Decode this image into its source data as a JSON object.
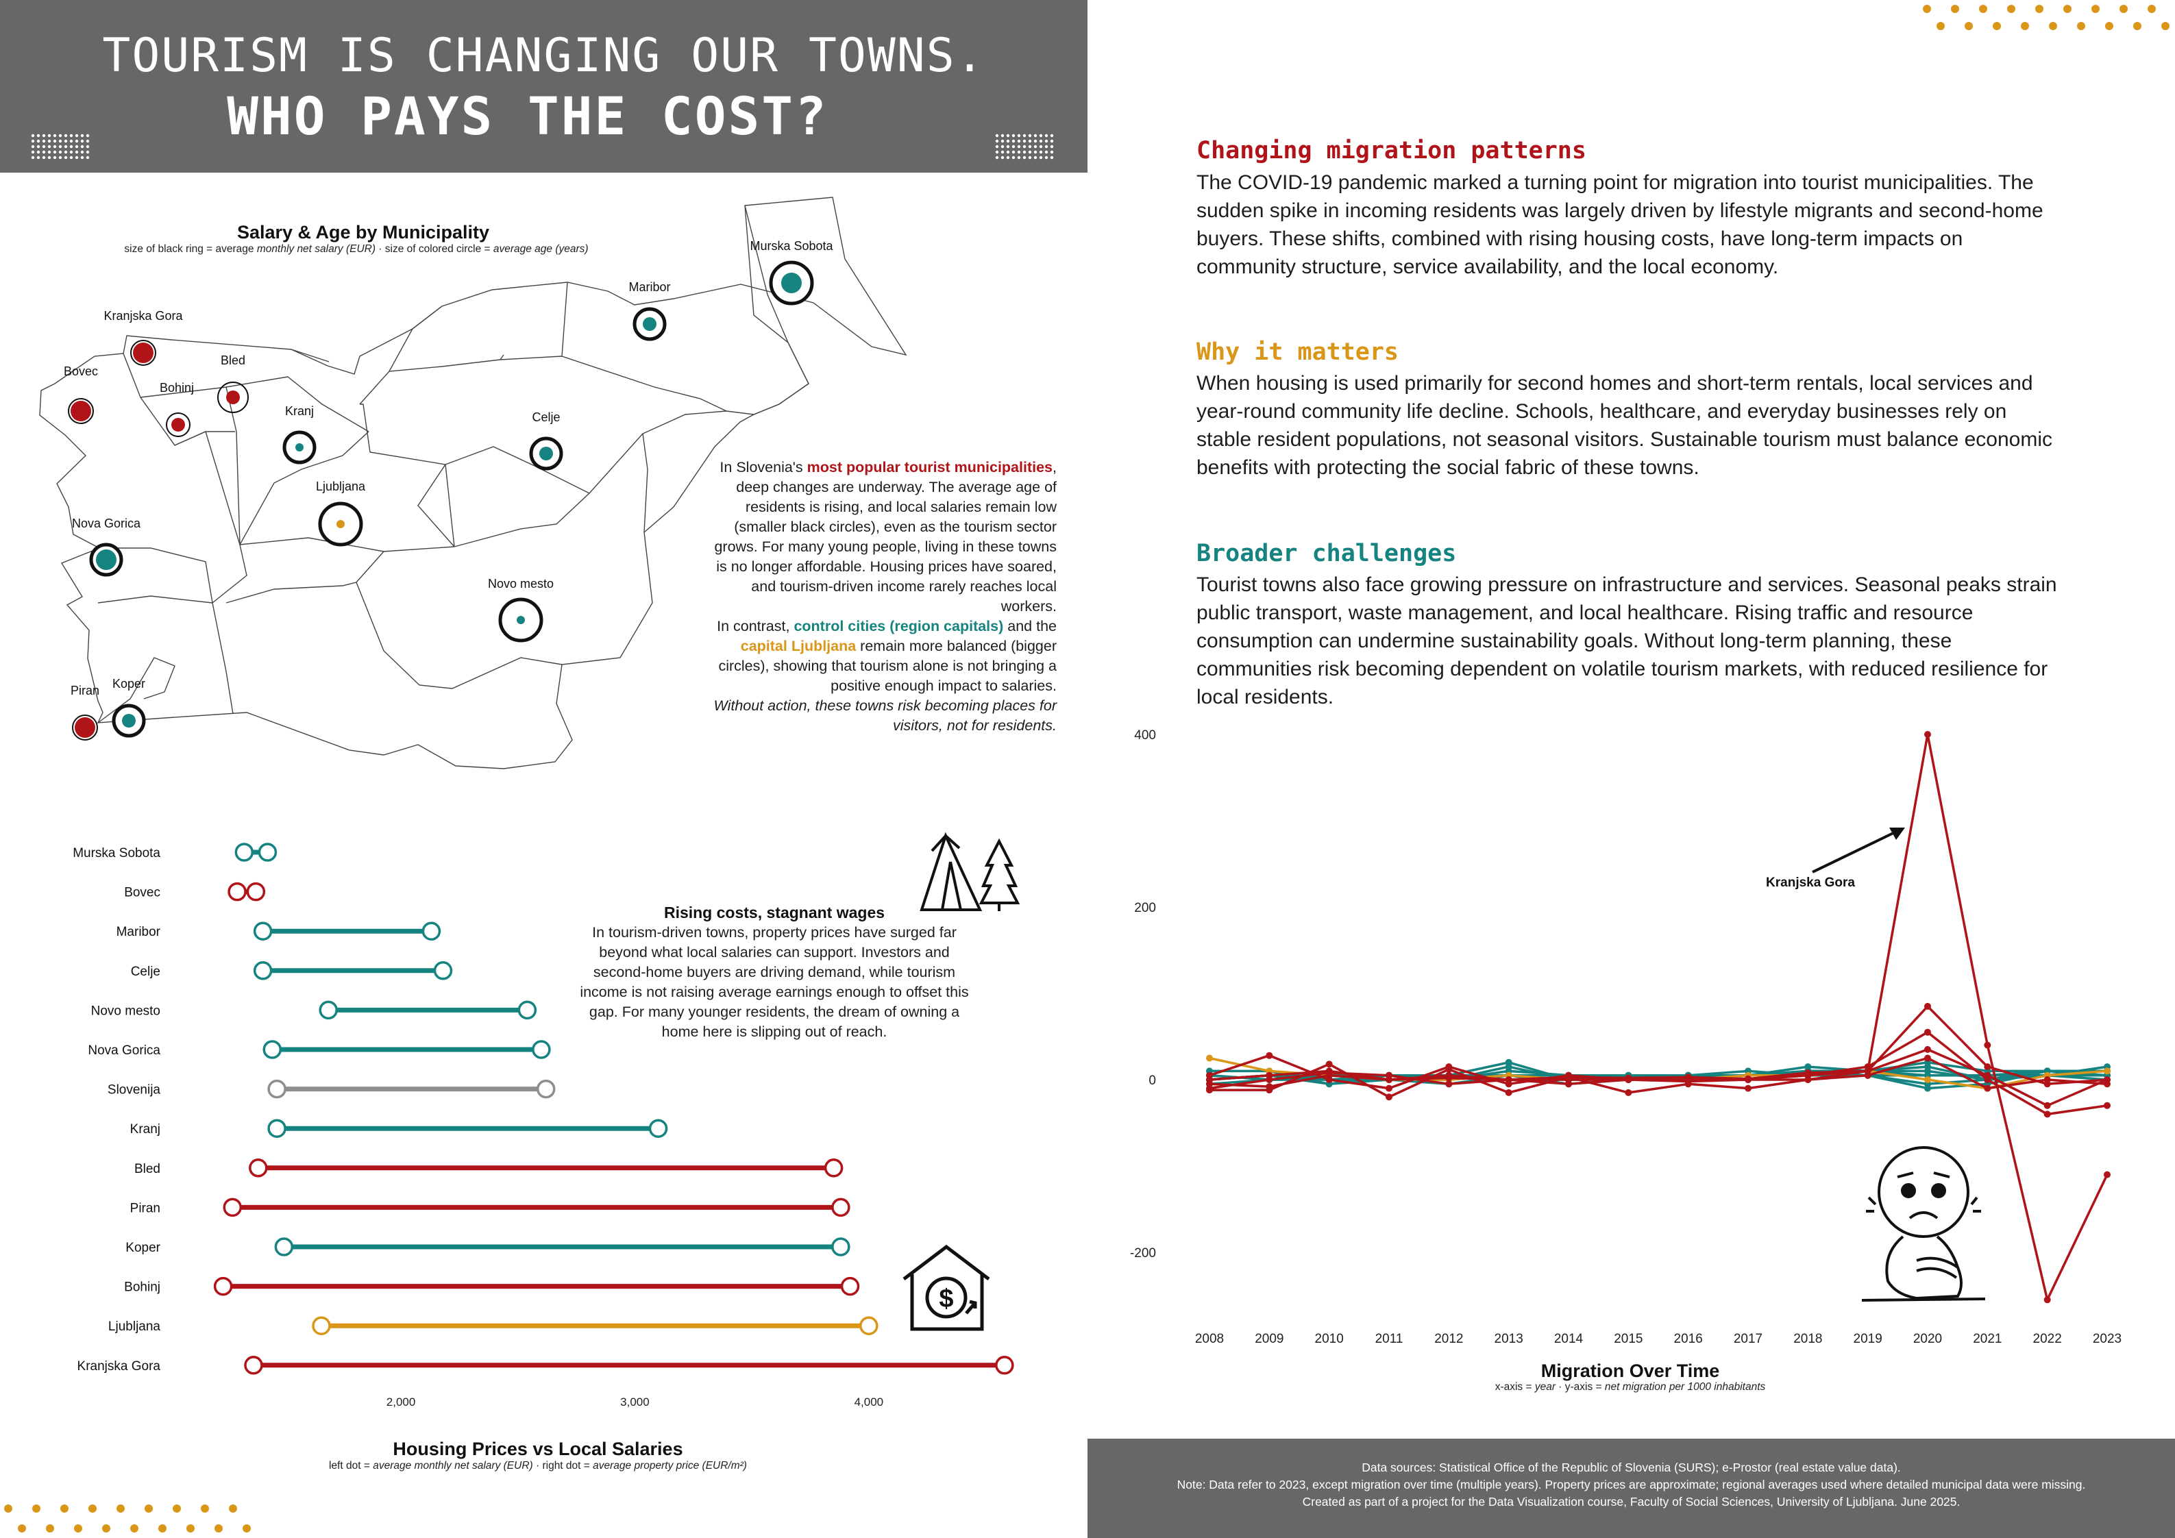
{
  "header": {
    "title_line1": "TOURISM IS CHANGING OUR TOWNS.",
    "title_line2": "WHO PAYS THE COST?"
  },
  "colors": {
    "header_bg": "#666769",
    "tourist_red": "#b01318",
    "control_teal": "#15837f",
    "capital_gold": "#d99619",
    "national_grey": "#8e8e8e",
    "dots_orange": "#d99619"
  },
  "sections": [
    {
      "title": "Changing migration patterns",
      "color": "#b01318",
      "body": "The COVID-19 pandemic marked a turning point for migration into tourist municipalities. The sudden spike in incoming residents was largely driven by lifestyle migrants and second-home buyers. These shifts, combined with rising housing costs, have long-term impacts on community structure, service availability, and the local economy."
    },
    {
      "title": "Why it matters",
      "color": "#d99619",
      "body": "When housing is used primarily for second homes and short-term rentals, local services and year-round community life decline. Schools, healthcare, and everyday businesses rely on stable resident populations, not seasonal visitors. Sustainable tourism must balance economic benefits with protecting the social fabric of these towns."
    },
    {
      "title": "Broader challenges",
      "color": "#15837f",
      "body": "Tourist towns also face growing pressure on infrastructure and services. Seasonal peaks strain public transport, waste management, and local healthcare. Rising traffic and resource consumption can undermine sustainability goals. Without long-term planning, these communities risk becoming dependent on volatile tourism markets, with reduced resilience for local residents."
    }
  ],
  "map_annotation": {
    "p1": "In Slovenia's ",
    "p1_red": "most popular tourist municipalities",
    "p2": ", deep changes are underway. The average age of residents is rising, and local salaries remain low (smaller black circles), even as the tourism sector grows. For many young people, living in these towns is no longer affordable. Housing prices have soared, and tourism-driven income rarely reaches local workers.",
    "p3": "In contrast, ",
    "p3_teal": "control cities (region capitals)",
    "p4": " and the ",
    "p4_gold": "capital Ljubljana",
    "p5": " remain more balanced (bigger circles), showing that tourism alone is not bringing a positive enough impact to salaries.",
    "p6": "Without action, these towns risk becoming places for visitors, not for residents."
  },
  "dumbbell_annotation": {
    "title": "Rising costs, stagnant wages",
    "body": "In tourism-driven towns, property prices have surged far beyond what local salaries can support. Investors and second-home buyers are driving demand, while tourism income is not raising average earnings enough to offset this gap. For many younger residents, the dream of owning a home here is slipping out of reach."
  },
  "footer": {
    "line1": "Data sources: Statistical Office of the Republic of Slovenia (SURS); e-Prostor (real estate value data).",
    "line2": "Note: Data refer to 2023, except migration over time (multiple years). Property prices are approximate; regional averages used where detailed municipal data were missing.",
    "line3": "Created as part of a project for the Data Visualization course, Faculty of Social Sciences, University of Ljubljana. June 2025."
  },
  "chart_data": [
    {
      "type": "map",
      "title": "Salary & Age by Municipality",
      "subtitle_parts": [
        "size of black ring = average ",
        "monthly net salary (EUR)",
        " · size of colored circle = ",
        "average age (years)"
      ],
      "points": [
        {
          "name": "Murska Sobota",
          "group": "control",
          "ring": "large",
          "dot": "large"
        },
        {
          "name": "Maribor",
          "group": "control",
          "ring": "medium",
          "dot": "medium"
        },
        {
          "name": "Kranjska Gora",
          "group": "tourist",
          "ring": "small",
          "dot": "large"
        },
        {
          "name": "Bled",
          "group": "tourist",
          "ring": "medium",
          "dot": "medium"
        },
        {
          "name": "Bovec",
          "group": "tourist",
          "ring": "small",
          "dot": "large"
        },
        {
          "name": "Bohinj",
          "group": "tourist",
          "ring": "small",
          "dot": "medium"
        },
        {
          "name": "Kranj",
          "group": "control",
          "ring": "medium",
          "dot": "small"
        },
        {
          "name": "Celje",
          "group": "control",
          "ring": "medium",
          "dot": "medium"
        },
        {
          "name": "Ljubljana",
          "group": "capital",
          "ring": "large",
          "dot": "small"
        },
        {
          "name": "Nova Gorica",
          "group": "control",
          "ring": "medium",
          "dot": "large"
        },
        {
          "name": "Novo mesto",
          "group": "control",
          "ring": "large",
          "dot": "small"
        },
        {
          "name": "Piran",
          "group": "tourist",
          "ring": "small",
          "dot": "large"
        },
        {
          "name": "Koper",
          "group": "control",
          "ring": "medium",
          "dot": "medium"
        }
      ]
    },
    {
      "type": "dumbbell",
      "title": "Housing Prices vs Local Salaries",
      "subtitle_parts": [
        "left dot = ",
        "average monthly net salary (EUR)",
        " · right dot = ",
        "average property price (EUR/m²)"
      ],
      "xlim": [
        960,
        4680
      ],
      "xticks": [
        "2,000",
        "3,000",
        "4,000"
      ],
      "xtick_values": [
        2000,
        3000,
        4000
      ],
      "rows": [
        {
          "name": "Murska Sobota",
          "group": "control",
          "salary": 1330,
          "price": 1430
        },
        {
          "name": "Bovec",
          "group": "tourist",
          "salary": 1300,
          "price": 1380
        },
        {
          "name": "Maribor",
          "group": "control",
          "salary": 1410,
          "price": 2130
        },
        {
          "name": "Celje",
          "group": "control",
          "salary": 1410,
          "price": 2180
        },
        {
          "name": "Novo mesto",
          "group": "control",
          "salary": 1690,
          "price": 2540
        },
        {
          "name": "Nova Gorica",
          "group": "control",
          "salary": 1450,
          "price": 2600
        },
        {
          "name": "Slovenija",
          "group": "national",
          "salary": 1470,
          "price": 2620
        },
        {
          "name": "Kranj",
          "group": "control",
          "salary": 1470,
          "price": 3100
        },
        {
          "name": "Bled",
          "group": "tourist",
          "salary": 1390,
          "price": 3850
        },
        {
          "name": "Piran",
          "group": "tourist",
          "salary": 1280,
          "price": 3880
        },
        {
          "name": "Koper",
          "group": "control",
          "salary": 1500,
          "price": 3880
        },
        {
          "name": "Bohinj",
          "group": "tourist",
          "salary": 1240,
          "price": 3920
        },
        {
          "name": "Ljubljana",
          "group": "capital",
          "salary": 1660,
          "price": 4000
        },
        {
          "name": "Kranjska Gora",
          "group": "tourist",
          "salary": 1370,
          "price": 4580
        }
      ]
    },
    {
      "type": "line",
      "title": "Migration Over Time",
      "subtitle_parts": [
        "x-axis = ",
        "year",
        " · y-axis = ",
        "net migration per 1000 inhabitants"
      ],
      "x": [
        2008,
        2009,
        2010,
        2011,
        2012,
        2013,
        2014,
        2015,
        2016,
        2017,
        2018,
        2019,
        2020,
        2021,
        2022,
        2023
      ],
      "ylim": [
        -270,
        420
      ],
      "yticks": [
        "400",
        "200",
        "0",
        "-200"
      ],
      "ytick_values": [
        400,
        200,
        0,
        -200
      ],
      "annotation": "Kranjska Gora",
      "series": [
        {
          "group": "tourist",
          "values": [
            -5,
            -8,
            5,
            0,
            2,
            0,
            3,
            2,
            3,
            1,
            8,
            10,
            400,
            40,
            -255,
            -110
          ]
        },
        {
          "group": "tourist",
          "values": [
            -12,
            -12,
            18,
            -20,
            12,
            -15,
            3,
            -15,
            -5,
            -10,
            0,
            10,
            85,
            15,
            -5,
            0
          ]
        },
        {
          "group": "tourist",
          "values": [
            5,
            28,
            0,
            -10,
            15,
            -5,
            5,
            0,
            -2,
            0,
            5,
            15,
            55,
            0,
            -40,
            -30
          ]
        },
        {
          "group": "tourist",
          "values": [
            0,
            5,
            10,
            0,
            5,
            0,
            0,
            0,
            0,
            0,
            5,
            10,
            35,
            5,
            -30,
            0
          ]
        },
        {
          "group": "tourist",
          "values": [
            -10,
            0,
            8,
            5,
            -5,
            0,
            -5,
            0,
            0,
            0,
            0,
            5,
            25,
            -10,
            0,
            -5
          ]
        },
        {
          "group": "capital",
          "values": [
            25,
            10,
            5,
            0,
            0,
            5,
            0,
            0,
            0,
            5,
            5,
            10,
            0,
            -10,
            5,
            10
          ]
        },
        {
          "group": "control",
          "values": [
            0,
            5,
            -5,
            5,
            0,
            15,
            0,
            0,
            5,
            5,
            10,
            10,
            15,
            0,
            10,
            5
          ]
        },
        {
          "group": "control",
          "values": [
            10,
            10,
            -5,
            0,
            5,
            20,
            0,
            5,
            0,
            5,
            15,
            10,
            5,
            5,
            10,
            10
          ]
        },
        {
          "group": "control",
          "values": [
            5,
            0,
            5,
            0,
            0,
            5,
            5,
            0,
            5,
            10,
            5,
            5,
            -5,
            0,
            5,
            0
          ]
        },
        {
          "group": "control",
          "values": [
            0,
            5,
            0,
            5,
            5,
            0,
            0,
            0,
            5,
            5,
            10,
            10,
            10,
            0,
            5,
            5
          ]
        },
        {
          "group": "control",
          "values": [
            -5,
            0,
            0,
            0,
            5,
            5,
            5,
            5,
            5,
            5,
            10,
            5,
            5,
            5,
            5,
            15
          ]
        },
        {
          "group": "control",
          "values": [
            5,
            0,
            0,
            0,
            -5,
            5,
            -5,
            0,
            0,
            5,
            5,
            5,
            -10,
            -5,
            10,
            5
          ]
        },
        {
          "group": "control",
          "values": [
            0,
            5,
            5,
            5,
            0,
            10,
            5,
            5,
            5,
            5,
            5,
            10,
            20,
            10,
            10,
            10
          ]
        }
      ]
    }
  ]
}
